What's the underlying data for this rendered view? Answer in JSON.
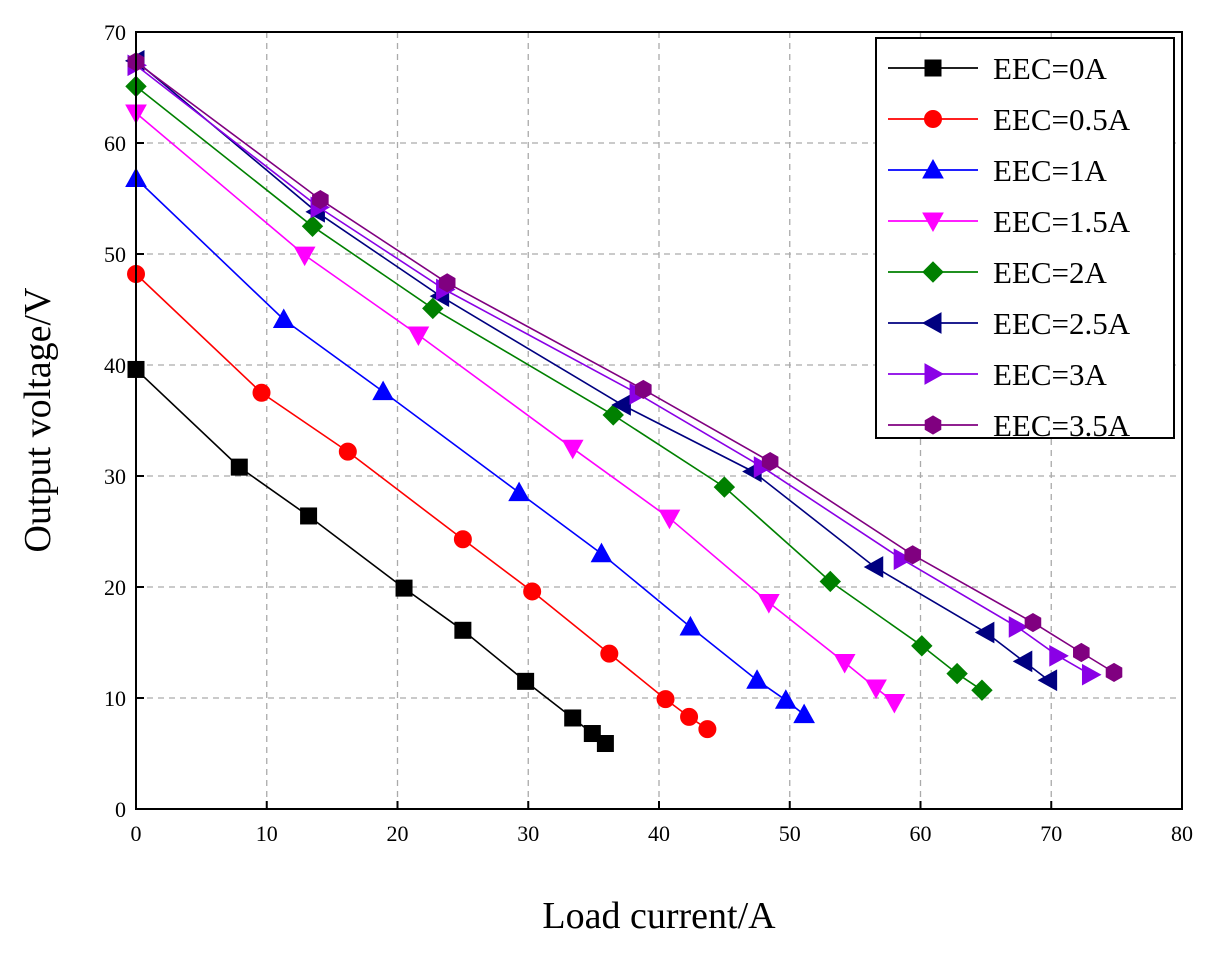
{
  "chart_data": {
    "type": "line",
    "title": "",
    "xlabel": "Load current/A",
    "ylabel": "Output voltage/V",
    "xlim": [
      0,
      80
    ],
    "ylim": [
      0,
      70
    ],
    "xticks": [
      0,
      10,
      20,
      30,
      40,
      50,
      60,
      70,
      80
    ],
    "yticks": [
      0,
      10,
      20,
      30,
      40,
      50,
      60,
      70
    ],
    "grid": true,
    "legend_position": "top-right",
    "series": [
      {
        "name": "EEC=0A",
        "color": "#000000",
        "marker": "square",
        "x": [
          0,
          7.9,
          13.2,
          20.5,
          25.0,
          29.8,
          33.4,
          34.9,
          35.9
        ],
        "y": [
          39.6,
          30.8,
          26.4,
          19.9,
          16.1,
          11.5,
          8.2,
          6.8,
          5.9
        ]
      },
      {
        "name": "EEC=0.5A",
        "color": "#ff0000",
        "marker": "circle",
        "x": [
          0,
          9.6,
          16.2,
          25.0,
          30.3,
          36.2,
          40.5,
          42.3,
          43.7
        ],
        "y": [
          48.2,
          37.5,
          32.2,
          24.3,
          19.6,
          14.0,
          9.9,
          8.3,
          7.2
        ]
      },
      {
        "name": "EEC=1A",
        "color": "#0000ff",
        "marker": "triangle-up",
        "x": [
          0,
          11.3,
          18.9,
          29.3,
          35.6,
          42.4,
          47.5,
          49.7,
          51.1
        ],
        "y": [
          56.8,
          44.1,
          37.6,
          28.5,
          23.0,
          16.4,
          11.6,
          9.8,
          8.5
        ]
      },
      {
        "name": "EEC=1.5A",
        "color": "#ff00ff",
        "marker": "triangle-down",
        "x": [
          0,
          12.9,
          21.6,
          33.4,
          40.8,
          48.4,
          54.2,
          56.6,
          58.0
        ],
        "y": [
          62.7,
          49.9,
          42.7,
          32.5,
          26.2,
          18.6,
          13.2,
          10.9,
          9.6
        ]
      },
      {
        "name": "EEC=2A",
        "color": "#008000",
        "marker": "diamond",
        "x": [
          0,
          13.5,
          22.7,
          36.5,
          45.0,
          53.1,
          60.1,
          62.8,
          64.7
        ],
        "y": [
          65.1,
          52.5,
          45.1,
          35.5,
          29.0,
          20.5,
          14.7,
          12.2,
          10.7
        ]
      },
      {
        "name": "EEC=2.5A",
        "color": "#000080",
        "marker": "triangle-left",
        "x": [
          0,
          13.8,
          23.3,
          37.2,
          47.2,
          56.5,
          65.0,
          67.9,
          69.8
        ],
        "y": [
          67.4,
          53.8,
          46.2,
          36.4,
          30.4,
          21.8,
          15.9,
          13.3,
          11.6
        ]
      },
      {
        "name": "EEC=3A",
        "color": "#8a00e6",
        "marker": "triangle-right",
        "x": [
          0,
          14.0,
          23.6,
          38.4,
          47.9,
          58.6,
          67.4,
          70.5,
          73.0
        ],
        "y": [
          67.0,
          54.2,
          46.8,
          37.4,
          30.8,
          22.5,
          16.4,
          13.8,
          12.1
        ]
      },
      {
        "name": "EEC=3.5A",
        "color": "#800080",
        "marker": "hexagon",
        "x": [
          0,
          14.1,
          23.8,
          38.8,
          48.5,
          59.4,
          68.6,
          72.3,
          74.8
        ],
        "y": [
          67.3,
          54.9,
          47.4,
          37.8,
          31.3,
          22.9,
          16.8,
          14.1,
          12.3
        ]
      }
    ]
  }
}
